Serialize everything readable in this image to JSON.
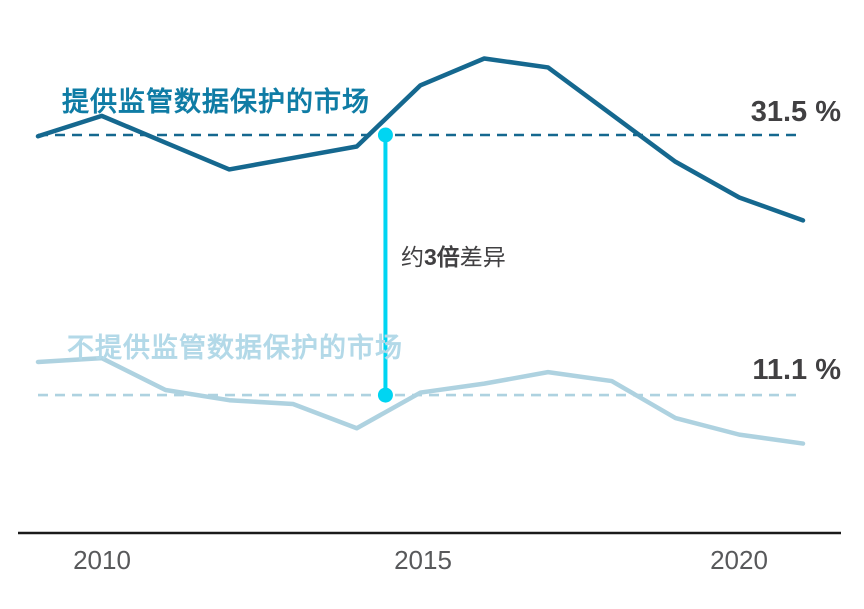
{
  "colors": {
    "dark_line": "#15688f",
    "light_line": "#aed2e0",
    "accent_cyan": "#00d5f2",
    "text_dark": "#414042",
    "axis_tick_gray": "#58595b",
    "title_dark": "#0f7ca5",
    "title_light": "#b3d9e8",
    "axis_line": "#1a1a1a"
  },
  "labels": {
    "series1_title": "提供监管数据保护的市场",
    "series2_title": "不提供监管数据保护的市场",
    "series1_value": "31.5 %",
    "series2_value": "11.1 %",
    "annotation_prefix": "约",
    "annotation_bold": "3倍",
    "annotation_suffix": "差异"
  },
  "axis": {
    "ticks": [
      "2010",
      "2015",
      "2020"
    ]
  },
  "chart_data": {
    "type": "line",
    "title": "",
    "xlabel": "",
    "ylabel": "",
    "x": [
      2009,
      2010,
      2011,
      2012,
      2013,
      2014,
      2015,
      2016,
      2017,
      2018,
      2019,
      2020,
      2021
    ],
    "x_ticks": [
      2010,
      2015,
      2020
    ],
    "ylim": [
      0,
      42
    ],
    "grid": false,
    "legend_position": "inline-labels",
    "series": [
      {
        "name": "提供监管数据保护的市场",
        "values": [
          31.4,
          33.0,
          30.9,
          28.8,
          29.7,
          30.6,
          35.4,
          37.5,
          36.8,
          33.1,
          29.4,
          26.6,
          24.8
        ]
      },
      {
        "name": "不提供监管数据保护的市场",
        "values": [
          13.7,
          14.0,
          11.5,
          10.7,
          10.4,
          8.5,
          11.3,
          12.0,
          12.9,
          12.2,
          9.3,
          8.0,
          7.3
        ]
      }
    ],
    "reference_lines": [
      {
        "label": "31.5 %",
        "value": 31.5,
        "style": "dashed"
      },
      {
        "label": "11.1 %",
        "value": 11.1,
        "style": "dashed"
      }
    ],
    "annotation": {
      "text": "约3倍差异",
      "x": 2014.45,
      "from": 31.5,
      "to": 11.1
    }
  }
}
